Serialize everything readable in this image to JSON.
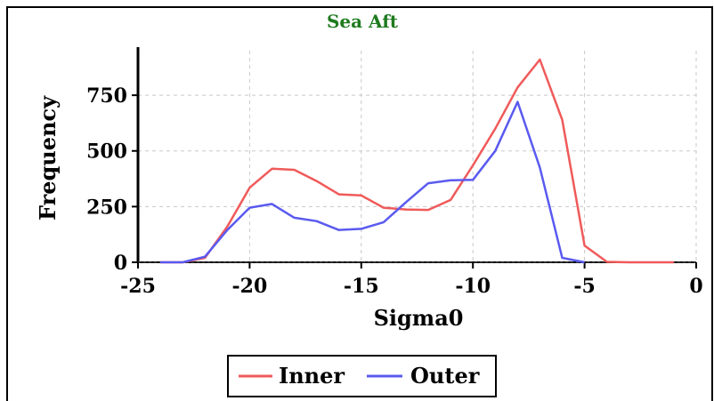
{
  "chart_data": {
    "type": "line",
    "title": "Sea Aft",
    "title_color": "#1e7a1e",
    "xlabel": "Sigma0",
    "ylabel": "Frequency",
    "xlim": [
      -25,
      0
    ],
    "ylim": [
      0,
      950
    ],
    "x_ticks": [
      -25,
      -20,
      -15,
      -10,
      -5,
      0
    ],
    "y_ticks": [
      0,
      250,
      500,
      750
    ],
    "grid": true,
    "legend_position": "bottom-center",
    "series": [
      {
        "name": "Inner",
        "color": "#f05a5a",
        "x": [
          -24,
          -23,
          -22,
          -21,
          -20,
          -19,
          -18,
          -17,
          -16,
          -15,
          -14,
          -13,
          -12,
          -11,
          -10,
          -9,
          -8,
          -7,
          -6,
          -5,
          -4,
          -3,
          -2,
          -1
        ],
        "y": [
          0,
          0,
          20,
          160,
          335,
          420,
          415,
          365,
          305,
          300,
          245,
          237,
          235,
          280,
          435,
          600,
          785,
          910,
          640,
          75,
          2,
          0,
          0,
          0
        ]
      },
      {
        "name": "Outer",
        "color": "#5a5af0",
        "x": [
          -24,
          -23,
          -22,
          -21,
          -20,
          -19,
          -18,
          -17,
          -16,
          -15,
          -14,
          -13,
          -12,
          -11,
          -10,
          -9,
          -8,
          -7,
          -6,
          -5
        ],
        "y": [
          0,
          0,
          25,
          145,
          245,
          262,
          200,
          185,
          145,
          150,
          180,
          270,
          355,
          368,
          370,
          500,
          720,
          425,
          20,
          0
        ]
      }
    ]
  }
}
